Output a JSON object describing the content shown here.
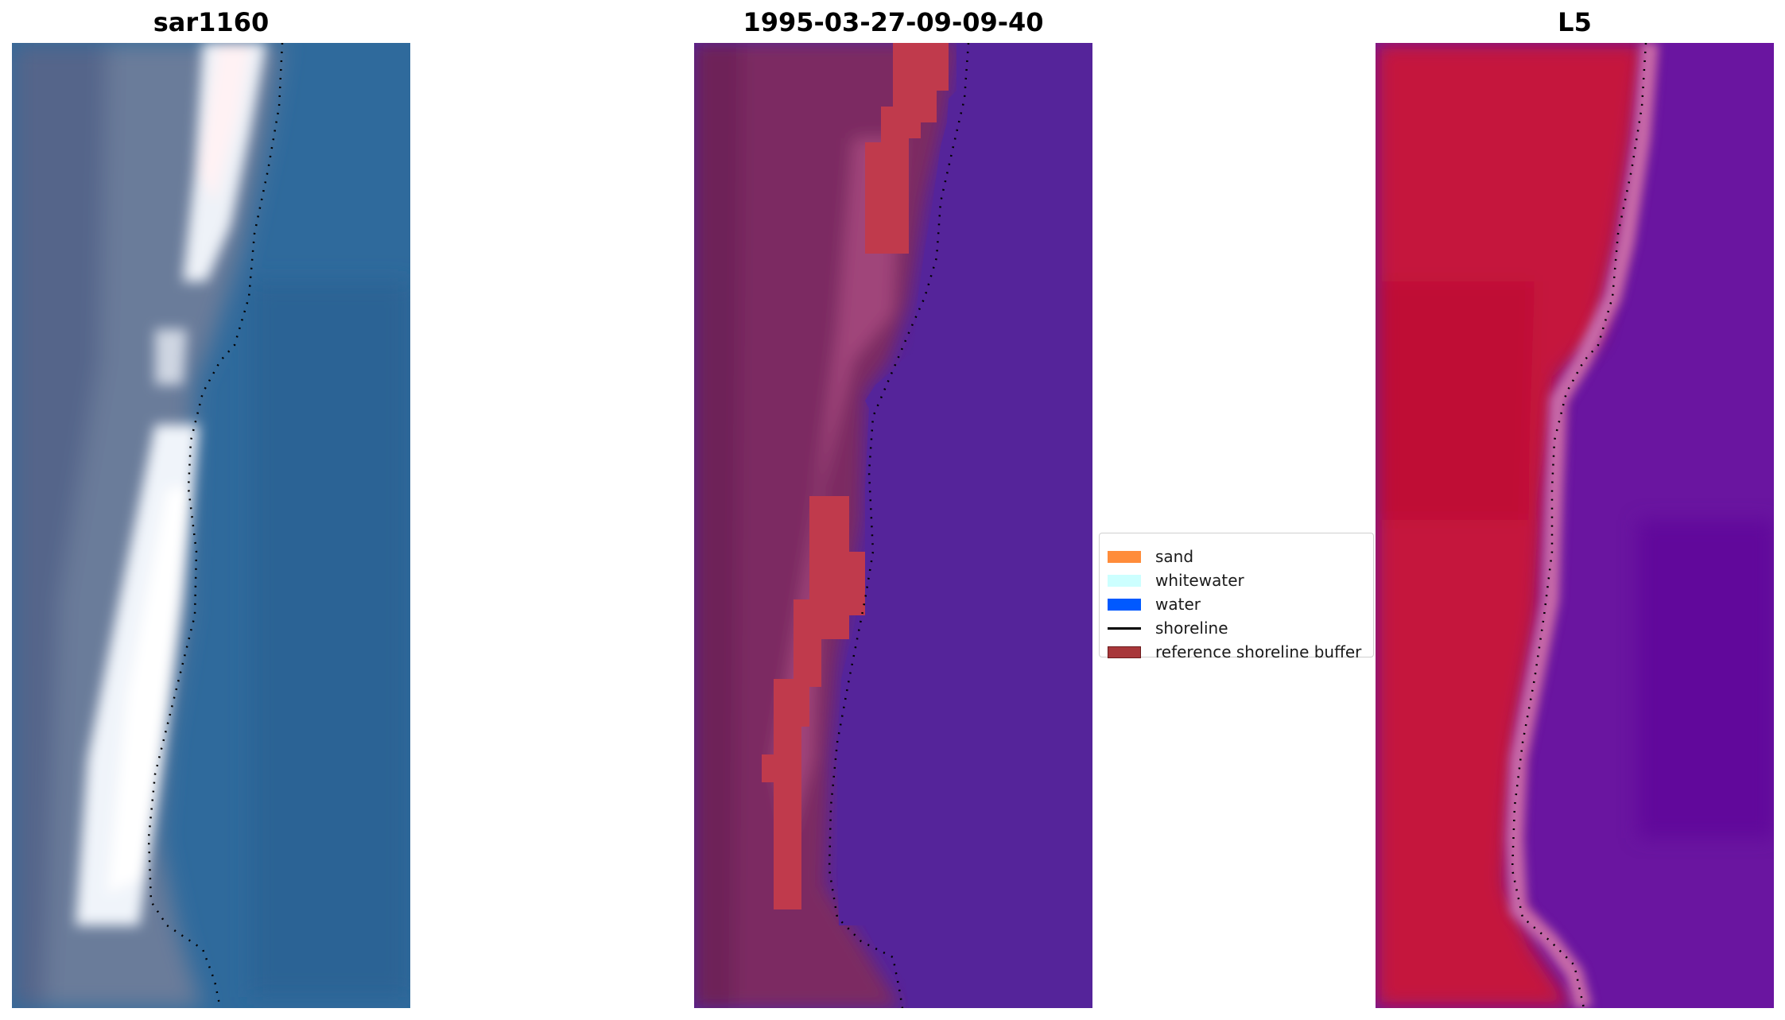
{
  "figure": {
    "titles": [
      "sar1160",
      "1995-03-27-09-09-40",
      "L5"
    ]
  },
  "legend": {
    "items": [
      {
        "label": "sand",
        "type": "patch",
        "color": "#ff8c3a",
        "edge": "#ff8c3a"
      },
      {
        "label": "whitewater",
        "type": "patch",
        "color": "#ccffff",
        "edge": "#ccffff"
      },
      {
        "label": "water",
        "type": "patch",
        "color": "#0059ff",
        "edge": "#0059ff"
      },
      {
        "label": "shoreline",
        "type": "line",
        "color": "#000000"
      },
      {
        "label": "reference shoreline buffer",
        "type": "patch",
        "color": "#a8373a",
        "edge": "#6b1a1c"
      }
    ]
  },
  "colors": {
    "rgb_water": "#2e6a9e",
    "rgb_land": "#6c7a98",
    "rgb_sand": "#f2f4f8",
    "class_land": "#7a2860",
    "class_water": "#55249a",
    "class_buffer": "#c03a4c",
    "index_land": "#c8103a",
    "index_water": "#6410a0",
    "shoreline": "#000000"
  }
}
